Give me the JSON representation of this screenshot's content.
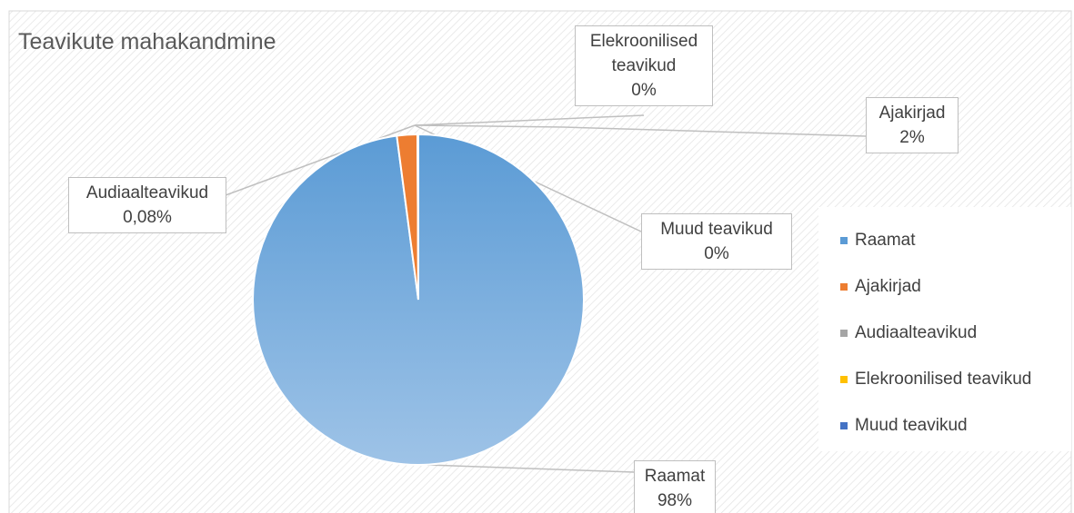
{
  "chart_data": {
    "type": "pie",
    "title": "Teavikute mahakandmine",
    "categories": [
      "Raamat",
      "Ajakirjad",
      "Audiaalteavikud",
      "Elekroonilised teavikud",
      "Muud teavikud"
    ],
    "values": [
      98,
      2,
      0.08,
      0,
      0
    ],
    "value_labels": [
      "98%",
      "2%",
      "0,08%",
      "0%",
      "0%"
    ],
    "colors": [
      "#5b9bd5",
      "#ed7d31",
      "#a5a5a5",
      "#ffc000",
      "#4472c4"
    ],
    "legend": "right"
  }
}
